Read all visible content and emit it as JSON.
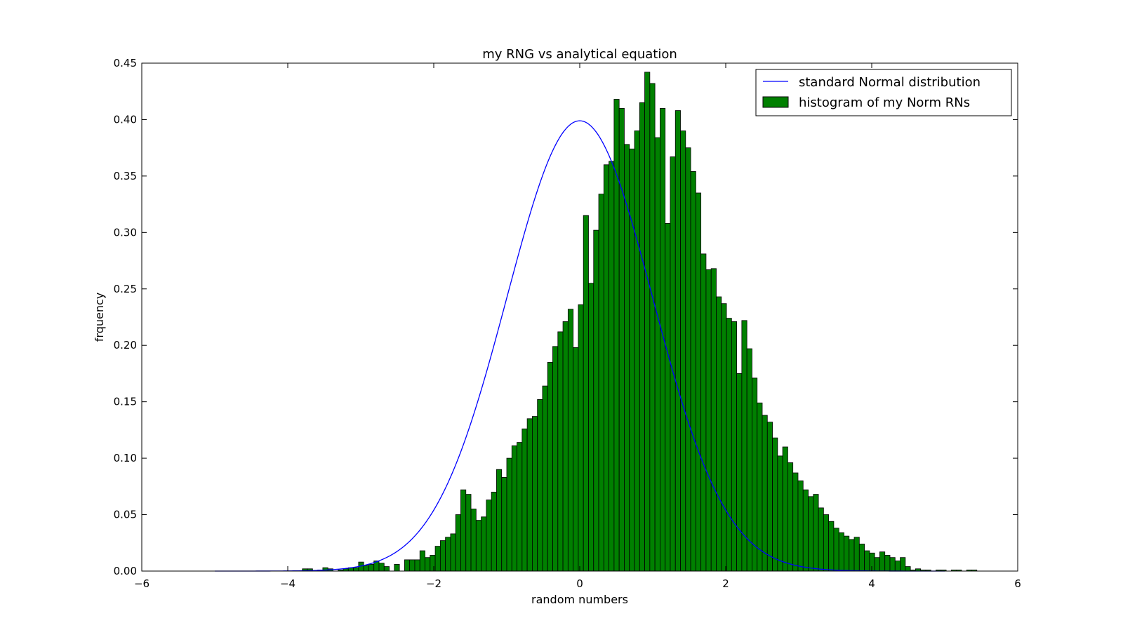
{
  "chart_data": {
    "type": "bar",
    "title": "my RNG vs analytical equation",
    "xlabel": "random numbers",
    "ylabel": "frquency",
    "xlim": [
      -6,
      6
    ],
    "ylim": [
      0,
      0.45
    ],
    "x_ticks": [
      -6,
      -4,
      -2,
      0,
      2,
      4,
      6
    ],
    "x_tick_labels": [
      "−6",
      "−4",
      "−2",
      "0",
      "2",
      "4",
      "6"
    ],
    "y_ticks": [
      0,
      0.05,
      0.1,
      0.15,
      0.2,
      0.25,
      0.3,
      0.35,
      0.4,
      0.45
    ],
    "y_tick_labels": [
      "0.00",
      "0.05",
      "0.10",
      "0.15",
      "0.20",
      "0.25",
      "0.30",
      "0.35",
      "0.40",
      "0.45"
    ],
    "grid": false,
    "legend": {
      "position": "top-right",
      "entries": [
        {
          "label": "standard Normal distribution",
          "kind": "line",
          "color": "#0000ff"
        },
        {
          "label": "histogram of my Norm RNs",
          "kind": "patch",
          "color": "#008000"
        }
      ]
    },
    "series": [
      {
        "name": "histogram of my Norm RNs",
        "kind": "histogram",
        "color": "#008000",
        "bin_start": -3.8,
        "bin_width": 0.07,
        "values": [
          0.002,
          0.002,
          0.0,
          0.001,
          0.003,
          0.002,
          0.0,
          0.001,
          0.002,
          0.003,
          0.003,
          0.008,
          0.005,
          0.006,
          0.009,
          0.007,
          0.004,
          0.0,
          0.006,
          0.0,
          0.01,
          0.01,
          0.01,
          0.018,
          0.012,
          0.014,
          0.022,
          0.027,
          0.03,
          0.033,
          0.05,
          0.072,
          0.068,
          0.055,
          0.045,
          0.048,
          0.063,
          0.07,
          0.09,
          0.083,
          0.1,
          0.111,
          0.114,
          0.126,
          0.135,
          0.137,
          0.152,
          0.164,
          0.185,
          0.199,
          0.212,
          0.221,
          0.232,
          0.198,
          0.236,
          0.315,
          0.255,
          0.302,
          0.334,
          0.36,
          0.363,
          0.418,
          0.41,
          0.378,
          0.374,
          0.39,
          0.415,
          0.442,
          0.432,
          0.384,
          0.41,
          0.308,
          0.367,
          0.408,
          0.39,
          0.375,
          0.354,
          0.335,
          0.281,
          0.267,
          0.268,
          0.243,
          0.237,
          0.224,
          0.221,
          0.175,
          0.222,
          0.197,
          0.171,
          0.149,
          0.138,
          0.132,
          0.118,
          0.102,
          0.11,
          0.096,
          0.087,
          0.08,
          0.072,
          0.066,
          0.068,
          0.056,
          0.05,
          0.044,
          0.038,
          0.034,
          0.031,
          0.028,
          0.03,
          0.024,
          0.018,
          0.016,
          0.012,
          0.017,
          0.014,
          0.012,
          0.009,
          0.012,
          0.004,
          0.001,
          0.002,
          0.001,
          0.001,
          0.0,
          0.001,
          0.001,
          0.0,
          0.001,
          0.001,
          0.0,
          0.001,
          0.001
        ]
      },
      {
        "name": "standard Normal distribution",
        "kind": "line",
        "color": "#0000ff",
        "x_range": [
          -5,
          5
        ],
        "mean": 0,
        "std": 1
      }
    ]
  }
}
